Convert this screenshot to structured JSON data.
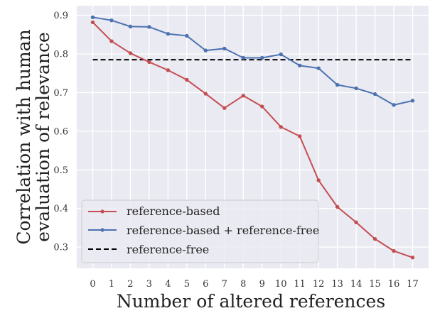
{
  "chart_data": {
    "type": "line",
    "title": "",
    "xlabel": "Number of altered references",
    "ylabel": [
      "Correlation with human",
      "evaluation of relevance"
    ],
    "x": [
      0,
      1,
      2,
      3,
      4,
      5,
      6,
      7,
      8,
      9,
      10,
      11,
      12,
      13,
      14,
      15,
      16,
      17
    ],
    "xticks": [
      "0",
      "1",
      "2",
      "3",
      "4",
      "5",
      "6",
      "7",
      "8",
      "9",
      "10",
      "11",
      "12",
      "13",
      "14",
      "15",
      "16",
      "17"
    ],
    "yticks": [
      0.3,
      0.4,
      0.5,
      0.6,
      0.7,
      0.8,
      0.9
    ],
    "ytick_labels": [
      "0.3",
      "0.4",
      "0.5",
      "0.6",
      "0.7",
      "0.8",
      "0.9"
    ],
    "ylim": [
      0.245,
      0.925
    ],
    "xlim": [
      -0.85,
      17.85
    ],
    "grid": true,
    "legend_position": "lower-left",
    "series": [
      {
        "name": "reference-based",
        "color": "#c44e52",
        "style": "solid-marker",
        "values": [
          0.882,
          0.833,
          0.802,
          0.779,
          0.758,
          0.733,
          0.697,
          0.66,
          0.692,
          0.664,
          0.611,
          0.587,
          0.473,
          0.404,
          0.364,
          0.321,
          0.29,
          0.273
        ]
      },
      {
        "name": "reference-based + reference-free",
        "color": "#4c72b0",
        "style": "solid-marker",
        "values": [
          0.895,
          0.887,
          0.871,
          0.87,
          0.852,
          0.847,
          0.809,
          0.814,
          0.79,
          0.79,
          0.799,
          0.77,
          0.763,
          0.72,
          0.711,
          0.696,
          0.668,
          0.679
        ]
      },
      {
        "name": "reference-free",
        "color": "#000000",
        "style": "dashed",
        "values": [
          0.785,
          0.785,
          0.785,
          0.785,
          0.785,
          0.785,
          0.785,
          0.785,
          0.785,
          0.785,
          0.785,
          0.785,
          0.785,
          0.785,
          0.785,
          0.785,
          0.785,
          0.785
        ]
      }
    ]
  }
}
